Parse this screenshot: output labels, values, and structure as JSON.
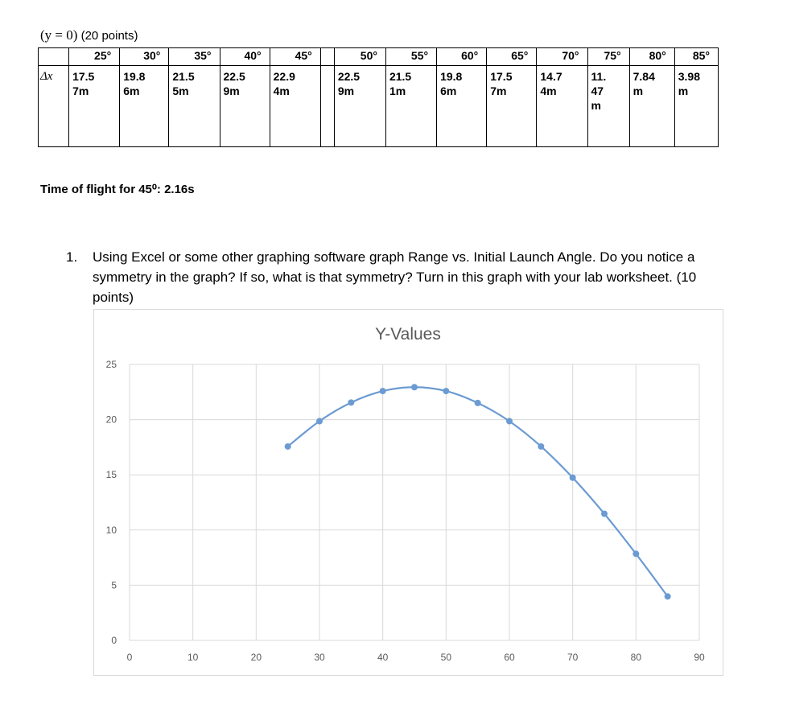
{
  "heading": {
    "condition": "(y = 0)",
    "points": "(20 points)"
  },
  "table": {
    "row_label": "Δx",
    "angles": [
      "25°",
      "30°",
      "35°",
      "40°",
      "45°",
      "",
      "50°",
      "55°",
      "60°",
      "65°",
      "70°",
      "75°",
      "80°",
      "85°"
    ],
    "values": [
      "17.5\n7m",
      "19.8\n6m",
      "21.5\n5m",
      "22.5\n9m",
      "22.9\n4m",
      "",
      "22.5\n9m",
      "21.5\n1m",
      "19.8\n6m",
      "17.5\n7m",
      "14.7\n4m",
      "11.\n47\nm",
      "7.84\nm",
      "3.98\nm"
    ]
  },
  "flight_time": "Time of flight for 45⁰: 2.16s",
  "question": {
    "number": "1.",
    "text": "Using Excel or some other graphing software graph Range vs. Initial Launch Angle. Do you notice a symmetry in the graph? If so, what is that symmetry? Turn in this graph with your lab worksheet. (10 points)"
  },
  "chart_data": {
    "type": "scatter",
    "title": "Y-Values",
    "xlabel": "",
    "ylabel": "",
    "xlim": [
      0,
      90
    ],
    "ylim": [
      0,
      25
    ],
    "xticks": [
      0,
      10,
      20,
      30,
      40,
      50,
      60,
      70,
      80,
      90
    ],
    "yticks": [
      0,
      5,
      10,
      15,
      20,
      25
    ],
    "grid": true,
    "smooth_line": true,
    "color": "#6b9bd2",
    "series": [
      {
        "x": [
          25,
          30,
          35,
          40,
          45,
          50,
          55,
          60,
          65,
          70,
          75,
          80,
          85
        ],
        "y": [
          17.57,
          19.86,
          21.55,
          22.59,
          22.94,
          22.59,
          21.51,
          19.86,
          17.57,
          14.74,
          11.47,
          7.84,
          3.98
        ]
      }
    ]
  }
}
